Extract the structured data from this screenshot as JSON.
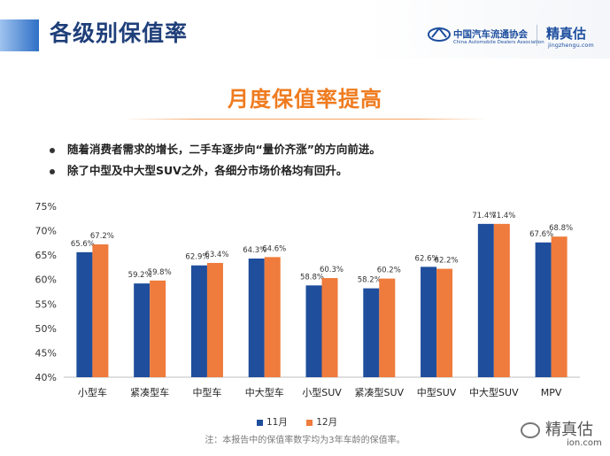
{
  "header": {
    "title": "各级别保值率",
    "cada_name_cn": "中国汽车流通协会",
    "cada_name_en": "China Automobile Dealers Association",
    "brand_cn": "精真估",
    "brand_url": "jingzhengu.com"
  },
  "section_title": "月度保值率提高",
  "bullets": [
    "随着消费者需求的增长，二手车逐步向“量价齐涨”的方向前进。",
    "除了中型及中大型SUV之外，各细分市场价格均有回升。"
  ],
  "footnote": "注：本报告中的保值率数字均为3年车龄的保值率。",
  "watermark": {
    "name": "精真估",
    "suffix": "ion.com"
  },
  "colors": {
    "series_1": "#1f4e9c",
    "series_2": "#ef7b3c",
    "title_blue": "#1f3f7a",
    "accent_orange": "#ef7b1f"
  },
  "chart_data": {
    "type": "bar",
    "categories": [
      "小型车",
      "紧凑型车",
      "中型车",
      "中大型车",
      "小型SUV",
      "紧凑型SUV",
      "中型SUV",
      "中大型SUV",
      "MPV"
    ],
    "series": [
      {
        "name": "11月",
        "values": [
          65.6,
          59.2,
          62.9,
          64.3,
          58.8,
          58.2,
          62.6,
          71.4,
          67.6
        ],
        "labels": [
          "65.6%",
          "59.2%",
          "62.9%",
          "64.3%",
          "58.8%",
          "58.2%",
          "62.6%",
          "71.4%",
          "67.6%"
        ]
      },
      {
        "name": "12月",
        "values": [
          67.2,
          59.8,
          63.4,
          64.6,
          60.3,
          60.2,
          62.2,
          71.4,
          68.8
        ],
        "labels": [
          "67.2%",
          "59.8%",
          "63.4%",
          "64.6%",
          "60.3%",
          "60.2%",
          "62.2%",
          "71.4%",
          "68.8%"
        ]
      }
    ],
    "y_ticks": [
      "40%",
      "45%",
      "50%",
      "55%",
      "60%",
      "65%",
      "70%",
      "75%"
    ],
    "ylim": [
      40,
      75
    ],
    "grid": false,
    "legend_position": "bottom"
  }
}
